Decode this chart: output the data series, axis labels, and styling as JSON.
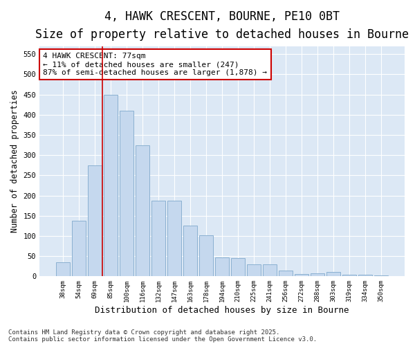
{
  "title_line1": "4, HAWK CRESCENT, BOURNE, PE10 0BT",
  "title_line2": "Size of property relative to detached houses in Bourne",
  "xlabel": "Distribution of detached houses by size in Bourne",
  "ylabel": "Number of detached properties",
  "categories": [
    "38sqm",
    "54sqm",
    "69sqm",
    "85sqm",
    "100sqm",
    "116sqm",
    "132sqm",
    "147sqm",
    "163sqm",
    "178sqm",
    "194sqm",
    "210sqm",
    "225sqm",
    "241sqm",
    "256sqm",
    "272sqm",
    "288sqm",
    "303sqm",
    "319sqm",
    "334sqm",
    "350sqm"
  ],
  "values": [
    35,
    137,
    275,
    450,
    410,
    325,
    187,
    187,
    125,
    102,
    47,
    45,
    30,
    30,
    15,
    5,
    8,
    10,
    4,
    4,
    2
  ],
  "bar_color": "#c5d8ee",
  "bar_edge_color": "#8ab0d0",
  "vline_x": 2.5,
  "vline_color": "#cc0000",
  "annotation_text": "4 HAWK CRESCENT: 77sqm\n← 11% of detached houses are smaller (247)\n87% of semi-detached houses are larger (1,878) →",
  "annotation_box_color": "#ffffff",
  "annotation_box_edge": "#cc0000",
  "annotation_fontsize": 8,
  "title_fontsize": 12,
  "subtitle_fontsize": 10,
  "ylabel_fontsize": 8.5,
  "xlabel_fontsize": 9,
  "ylim": [
    0,
    570
  ],
  "yticks": [
    0,
    50,
    100,
    150,
    200,
    250,
    300,
    350,
    400,
    450,
    500,
    550
  ],
  "fig_background_color": "#ffffff",
  "plot_background": "#dce8f5",
  "footer_line1": "Contains HM Land Registry data © Crown copyright and database right 2025.",
  "footer_line2": "Contains public sector information licensed under the Open Government Licence v3.0.",
  "footer_fontsize": 6.5
}
